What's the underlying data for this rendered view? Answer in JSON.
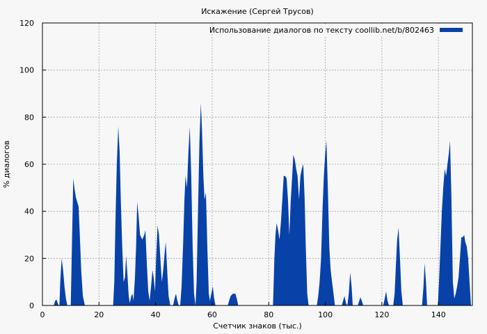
{
  "chart_data": {
    "type": "area",
    "title": "Искажение (Сергей Трусов)",
    "xlabel": "Счетчик знаков (тыс.)",
    "ylabel": "% диалогов",
    "xlim": [
      0,
      152
    ],
    "ylim": [
      0,
      120
    ],
    "xticks": [
      0,
      20,
      40,
      60,
      80,
      100,
      120,
      140
    ],
    "yticks": [
      0,
      20,
      40,
      60,
      80,
      100,
      120
    ],
    "grid": true,
    "legend_position": "top-right",
    "series": [
      {
        "name": "Использование диалогов по тексту coollib.net/b/802463",
        "color": "#0842a8",
        "points": [
          [
            0,
            0
          ],
          [
            4,
            0
          ],
          [
            4.5,
            2
          ],
          [
            5,
            2.5
          ],
          [
            5.5,
            0.5
          ],
          [
            6,
            0
          ],
          [
            6.3,
            10
          ],
          [
            6.8,
            20
          ],
          [
            7.3,
            15
          ],
          [
            7.8,
            8
          ],
          [
            8.3,
            3
          ],
          [
            8.8,
            0
          ],
          [
            10,
            0
          ],
          [
            10.5,
            30
          ],
          [
            10.9,
            54
          ],
          [
            11.3,
            50
          ],
          [
            11.8,
            46
          ],
          [
            12.3,
            44
          ],
          [
            12.8,
            42
          ],
          [
            13.2,
            30
          ],
          [
            13.7,
            15
          ],
          [
            14.3,
            4
          ],
          [
            15,
            0
          ],
          [
            25,
            0
          ],
          [
            25.4,
            10
          ],
          [
            25.8,
            35
          ],
          [
            26.3,
            60
          ],
          [
            26.8,
            76
          ],
          [
            27.3,
            65
          ],
          [
            27.7,
            45
          ],
          [
            28.2,
            25
          ],
          [
            28.7,
            10
          ],
          [
            29.2,
            12
          ],
          [
            29.6,
            21
          ],
          [
            30.1,
            12
          ],
          [
            30.5,
            4
          ],
          [
            30.9,
            1
          ],
          [
            31.4,
            4
          ],
          [
            31.8,
            5
          ],
          [
            32.2,
            2
          ],
          [
            32.7,
            12
          ],
          [
            33.1,
            25
          ],
          [
            33.5,
            44
          ],
          [
            34,
            38
          ],
          [
            34.5,
            30
          ],
          [
            35.3,
            28
          ],
          [
            36,
            30
          ],
          [
            36.4,
            32
          ],
          [
            36.9,
            18
          ],
          [
            37.4,
            6
          ],
          [
            37.9,
            2
          ],
          [
            38.4,
            8
          ],
          [
            38.9,
            15
          ],
          [
            39.3,
            12
          ],
          [
            39.8,
            6
          ],
          [
            40.2,
            20
          ],
          [
            40.7,
            34
          ],
          [
            41.2,
            30
          ],
          [
            41.7,
            20
          ],
          [
            42.2,
            10
          ],
          [
            42.7,
            15
          ],
          [
            43.2,
            22
          ],
          [
            43.6,
            27
          ],
          [
            44.1,
            15
          ],
          [
            44.6,
            4
          ],
          [
            45.2,
            0
          ],
          [
            46.2,
            0
          ],
          [
            46.7,
            3
          ],
          [
            47.2,
            5
          ],
          [
            47.7,
            2
          ],
          [
            48.2,
            0
          ],
          [
            48.7,
            0
          ],
          [
            49.2,
            8
          ],
          [
            49.7,
            25
          ],
          [
            50.2,
            45
          ],
          [
            50.6,
            55
          ],
          [
            51.1,
            50
          ],
          [
            51.6,
            65
          ],
          [
            52.1,
            76
          ],
          [
            52.6,
            55
          ],
          [
            53.1,
            25
          ],
          [
            53.6,
            5
          ],
          [
            54.1,
            0
          ],
          [
            54.5,
            10
          ],
          [
            55,
            40
          ],
          [
            55.5,
            70
          ],
          [
            56,
            86
          ],
          [
            56.4,
            75
          ],
          [
            56.9,
            55
          ],
          [
            57.3,
            45
          ],
          [
            57.8,
            48
          ],
          [
            58.3,
            25
          ],
          [
            58.8,
            5
          ],
          [
            59.2,
            2
          ],
          [
            59.7,
            5
          ],
          [
            60.2,
            8
          ],
          [
            60.7,
            3
          ],
          [
            61.2,
            0
          ],
          [
            65.5,
            0
          ],
          [
            66,
            2
          ],
          [
            66.5,
            4
          ],
          [
            67.3,
            5
          ],
          [
            68.2,
            5
          ],
          [
            68.7,
            3
          ],
          [
            69.2,
            0
          ],
          [
            81.5,
            0
          ],
          [
            82,
            20
          ],
          [
            82.4,
            30
          ],
          [
            82.8,
            35
          ],
          [
            83.3,
            32
          ],
          [
            83.8,
            28
          ],
          [
            84.3,
            35
          ],
          [
            84.8,
            45
          ],
          [
            85.3,
            55
          ],
          [
            85.8,
            55
          ],
          [
            86.3,
            54
          ],
          [
            86.8,
            45
          ],
          [
            87.3,
            30
          ],
          [
            87.8,
            45
          ],
          [
            88.3,
            55
          ],
          [
            88.7,
            64
          ],
          [
            89.2,
            62
          ],
          [
            89.7,
            58
          ],
          [
            90.2,
            55
          ],
          [
            90.7,
            45
          ],
          [
            91.2,
            55
          ],
          [
            91.7,
            58
          ],
          [
            92.2,
            60
          ],
          [
            92.7,
            45
          ],
          [
            93.1,
            25
          ],
          [
            93.6,
            5
          ],
          [
            94.1,
            0
          ],
          [
            97,
            0
          ],
          [
            97.5,
            4
          ],
          [
            98,
            10
          ],
          [
            98.5,
            20
          ],
          [
            99,
            40
          ],
          [
            99.5,
            55
          ],
          [
            100,
            65
          ],
          [
            100.4,
            70
          ],
          [
            100.9,
            50
          ],
          [
            101.4,
            25
          ],
          [
            101.9,
            15
          ],
          [
            102.4,
            10
          ],
          [
            102.9,
            5
          ],
          [
            103.4,
            0
          ],
          [
            105.8,
            0
          ],
          [
            106.3,
            2
          ],
          [
            106.8,
            4
          ],
          [
            107.3,
            1
          ],
          [
            107.8,
            0
          ],
          [
            108.3,
            5
          ],
          [
            108.8,
            14
          ],
          [
            109.3,
            8
          ],
          [
            109.7,
            0
          ],
          [
            111.5,
            0
          ],
          [
            112,
            2
          ],
          [
            112.4,
            3.5
          ],
          [
            112.9,
            2
          ],
          [
            113.4,
            0
          ],
          [
            120.5,
            0
          ],
          [
            121,
            3
          ],
          [
            121.5,
            6
          ],
          [
            122,
            2
          ],
          [
            122.5,
            0
          ],
          [
            124,
            0
          ],
          [
            124.5,
            5
          ],
          [
            125,
            18
          ],
          [
            125.4,
            28
          ],
          [
            125.9,
            33
          ],
          [
            126.4,
            20
          ],
          [
            126.9,
            6
          ],
          [
            127.4,
            0
          ],
          [
            134.2,
            0
          ],
          [
            134.7,
            8
          ],
          [
            135.1,
            18
          ],
          [
            135.6,
            10
          ],
          [
            136,
            0
          ],
          [
            139.8,
            0
          ],
          [
            140.2,
            10
          ],
          [
            140.7,
            25
          ],
          [
            141.2,
            40
          ],
          [
            141.7,
            50
          ],
          [
            142.2,
            58
          ],
          [
            142.7,
            55
          ],
          [
            143.2,
            60
          ],
          [
            143.7,
            65
          ],
          [
            144.1,
            70
          ],
          [
            144.6,
            45
          ],
          [
            145.1,
            10
          ],
          [
            145.6,
            3
          ],
          [
            146.1,
            5
          ],
          [
            146.6,
            8
          ],
          [
            147.1,
            12
          ],
          [
            147.6,
            20
          ],
          [
            148.1,
            29
          ],
          [
            148.6,
            29
          ],
          [
            149.1,
            30
          ],
          [
            149.5,
            27
          ],
          [
            150,
            25
          ],
          [
            150.5,
            20
          ],
          [
            151,
            10
          ],
          [
            151.5,
            0
          ]
        ]
      }
    ]
  }
}
